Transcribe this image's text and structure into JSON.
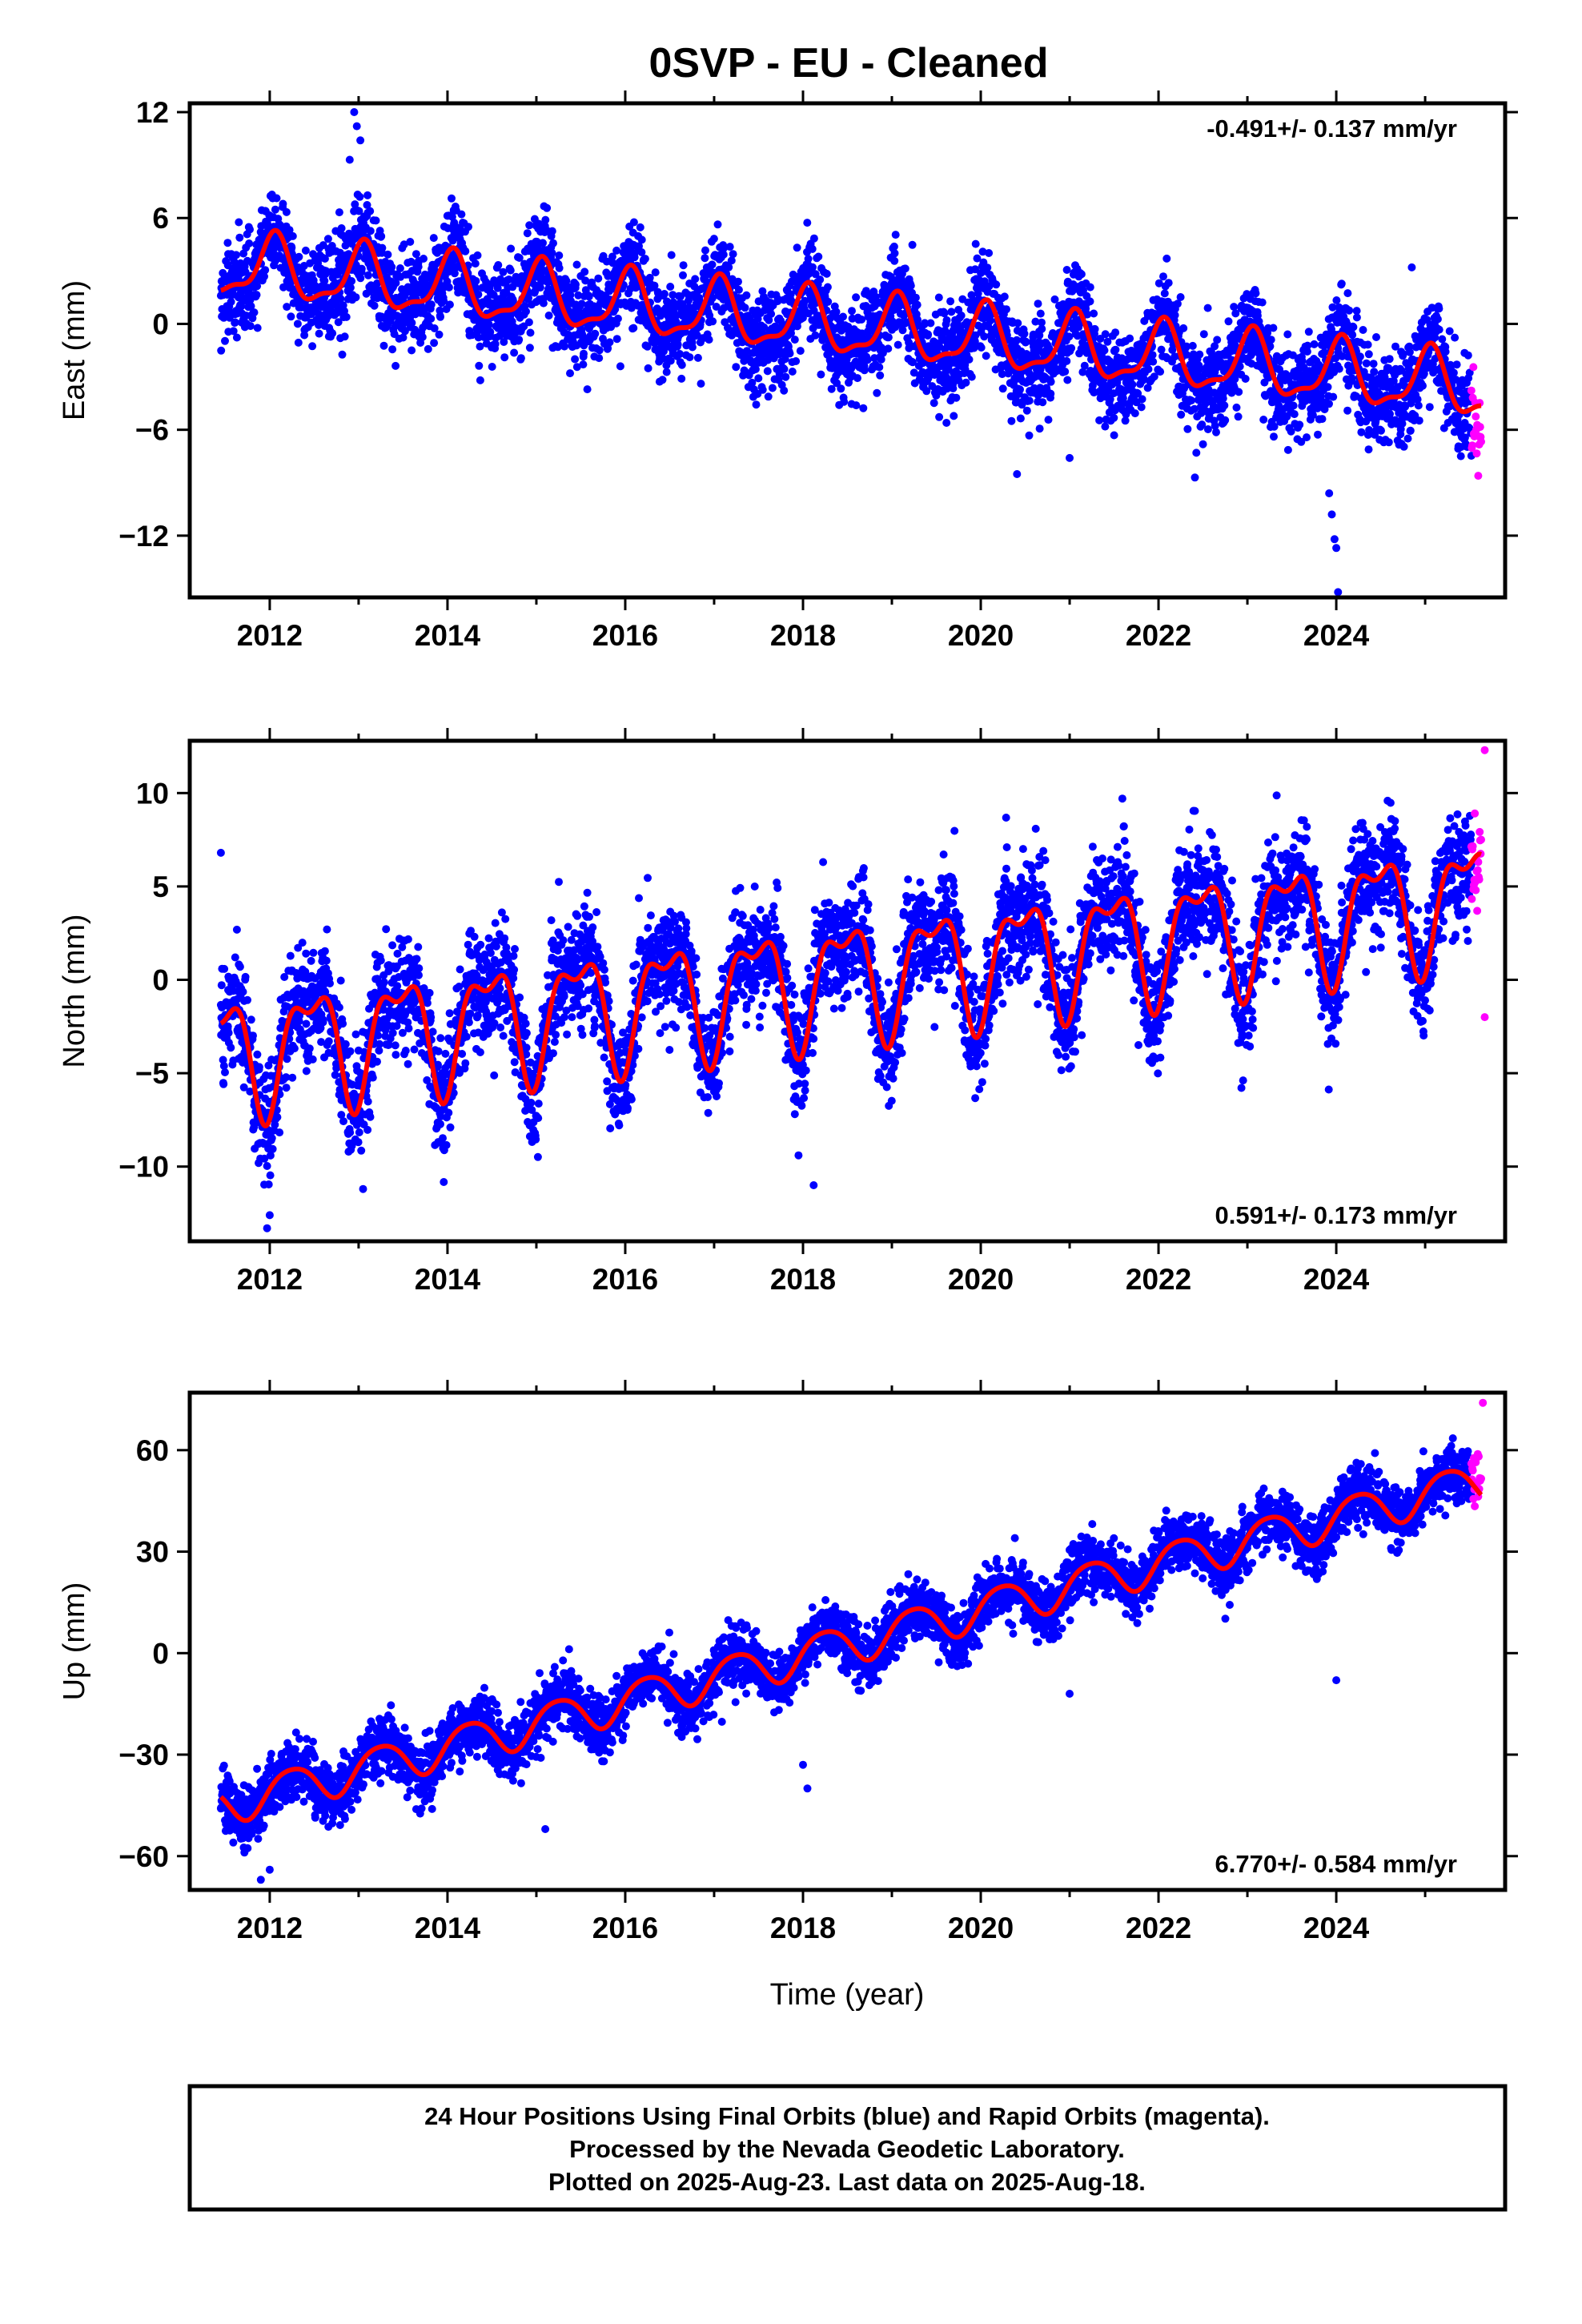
{
  "chart_data": {
    "type": "scatter",
    "title": "0SVP  - EU - Cleaned",
    "xlabel": "Time (year)",
    "xlim": [
      2011.1,
      2025.9
    ],
    "xticks": [
      2012,
      2014,
      2016,
      2018,
      2020,
      2022,
      2024
    ],
    "xtick_labels": [
      "2012",
      "2014",
      "2016",
      "2018",
      "2020",
      "2022",
      "2024"
    ],
    "colors": {
      "final": "#0000ff",
      "rapid": "#ff00ff",
      "fit": "#ff0000"
    },
    "panels": [
      {
        "id": "east",
        "ylabel": "East (mm)",
        "ylim": [
          -15.5,
          12.5
        ],
        "yticks": [
          -12,
          -6,
          0,
          6,
          12
        ],
        "ytick_labels": [
          "−12",
          "−6",
          "0",
          "6",
          "12"
        ],
        "rate_label": "-0.491+/- 0.137 mm/yr",
        "rate_position": "top-right",
        "fit": {
          "t0": 2011.5,
          "intercept": 3.3,
          "slope": -0.491,
          "amp1": 1.7,
          "phase1": 0.3,
          "amp2": 0.6,
          "phase2": 1.0
        },
        "fit_start": 2011.45,
        "noise": 1.35,
        "final_end": 2025.52,
        "rapid_end": 2025.63,
        "rapid_offset": -2.0,
        "outliers": [
          [
            2012.95,
            12.0
          ],
          [
            2012.98,
            11.2
          ],
          [
            2013.02,
            10.4
          ],
          [
            2012.9,
            9.3
          ],
          [
            2023.92,
            -9.6
          ],
          [
            2023.95,
            -10.8
          ],
          [
            2023.98,
            -12.2
          ],
          [
            2024.0,
            -12.7
          ],
          [
            2024.02,
            -15.2
          ],
          [
            2024.85,
            3.2
          ],
          [
            2021.0,
            -7.6
          ]
        ],
        "series": [
          {
            "name": "Final Orbits",
            "color": "#0000ff"
          },
          {
            "name": "Rapid Orbits",
            "color": "#ff00ff"
          }
        ]
      },
      {
        "id": "north",
        "ylabel": "North (mm)",
        "ylim": [
          -14,
          12.8
        ],
        "yticks": [
          -10,
          -5,
          0,
          5,
          10
        ],
        "ytick_labels": [
          "−10",
          "−5",
          "0",
          "5",
          "10"
        ],
        "rate_label": "0.591+/- 0.173 mm/yr",
        "rate_position": "bottom-right",
        "fit": {
          "t0": 2011.5,
          "intercept": -3.9,
          "slope": 0.591,
          "amp1": 2.9,
          "phase1": 2.9,
          "amp2": 1.3,
          "phase2": 2.5
        },
        "fit_start": 2011.45,
        "noise": 1.5,
        "final_end": 2025.52,
        "rapid_end": 2025.63,
        "rapid_offset": -1.0,
        "outliers": [
          [
            2011.45,
            6.8
          ],
          [
            2011.97,
            -13.3
          ],
          [
            2012.0,
            -12.6
          ],
          [
            2013.05,
            -11.2
          ],
          [
            2018.12,
            -11.0
          ],
          [
            2017.95,
            -9.4
          ],
          [
            2025.67,
            12.3
          ],
          [
            2025.67,
            -2.0
          ]
        ],
        "series": [
          {
            "name": "Final Orbits",
            "color": "#0000ff"
          },
          {
            "name": "Rapid Orbits",
            "color": "#ff00ff"
          }
        ]
      },
      {
        "id": "up",
        "ylabel": "Up (mm)",
        "ylim": [
          -70,
          77
        ],
        "yticks": [
          -60,
          -30,
          0,
          30,
          60
        ],
        "ytick_labels": [
          "−60",
          "−30",
          "0",
          "30",
          "60"
        ],
        "rate_label": "6.770+/- 0.584 mm/yr",
        "rate_position": "bottom-right",
        "fit": {
          "t0": 2011.5,
          "intercept": -44.5,
          "slope": 6.77,
          "amp1": 5.8,
          "phase1": 1.55,
          "amp2": 0.8,
          "phase2": 0.0
        },
        "fit_start": 2011.45,
        "noise": 4.2,
        "final_end": 2025.52,
        "rapid_end": 2025.63,
        "rapid_offset": 8.0,
        "outliers": [
          [
            2011.9,
            -67.0
          ],
          [
            2012.0,
            -64.0
          ],
          [
            2015.1,
            -52.0
          ],
          [
            2018.05,
            -40.0
          ],
          [
            2018.0,
            -33.0
          ],
          [
            2024.0,
            -8.0
          ],
          [
            2021.0,
            -12.0
          ],
          [
            2025.65,
            74.0
          ]
        ],
        "series": [
          {
            "name": "Final Orbits",
            "color": "#0000ff"
          },
          {
            "name": "Rapid Orbits",
            "color": "#ff00ff"
          }
        ]
      }
    ]
  },
  "footer": {
    "line1": "24 Hour Positions Using Final Orbits (blue) and Rapid Orbits (magenta).",
    "line2": "Processed by the Nevada Geodetic Laboratory.",
    "line3": "Plotted on 2025-Aug-23. Last data on 2025-Aug-18."
  }
}
